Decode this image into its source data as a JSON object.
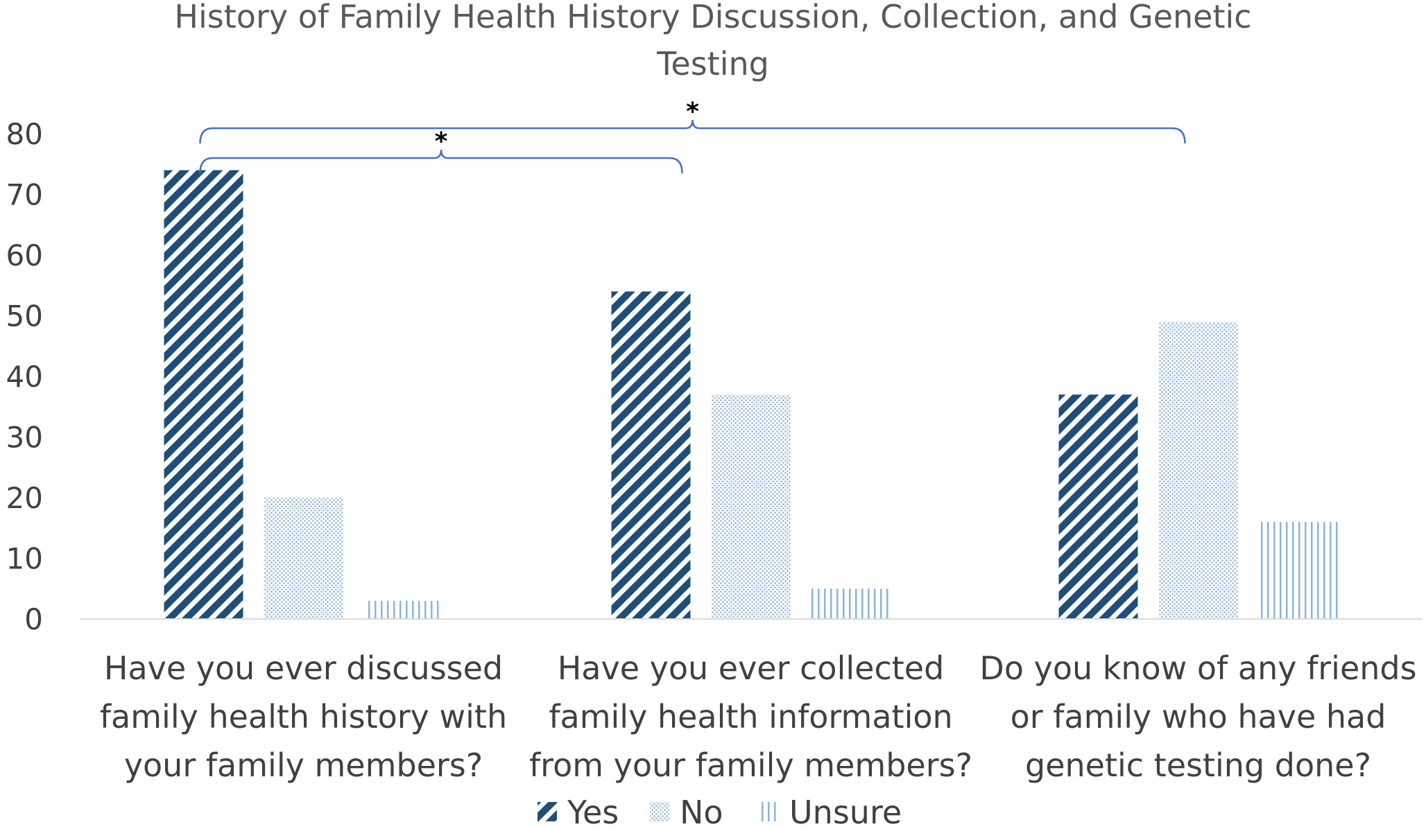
{
  "chart_data": {
    "type": "bar",
    "title_lines": [
      "History of Family Health History Discussion, Collection, and Genetic",
      "Testing"
    ],
    "categories": [
      [
        "Have you ever discussed",
        "family health history with",
        "your family members?"
      ],
      [
        "Have you ever collected",
        "family health information",
        "from your family members?"
      ],
      [
        "Do you know of any friends",
        "or family who have had",
        "genetic testing done?"
      ]
    ],
    "series": [
      {
        "name": "Yes",
        "values": [
          74,
          54,
          37
        ],
        "color": "#1f4e79",
        "pattern": "diagonal-stripes"
      },
      {
        "name": "No",
        "values": [
          20,
          37,
          49
        ],
        "color": "#8db3d9",
        "pattern": "dots"
      },
      {
        "name": "Unsure",
        "values": [
          3,
          5,
          16
        ],
        "color": "#8db3d9",
        "pattern": "vertical-lines"
      }
    ],
    "ylim": [
      0,
      80
    ],
    "yticks": [
      0,
      10,
      20,
      30,
      40,
      50,
      60,
      70,
      80
    ],
    "grid": false,
    "legend_position": "bottom",
    "significance": [
      {
        "from_category": 0,
        "to_category": 1,
        "label": "*"
      },
      {
        "from_category": 0,
        "to_category": 2,
        "label": "*"
      }
    ],
    "bracket_color": "#4472c4"
  }
}
